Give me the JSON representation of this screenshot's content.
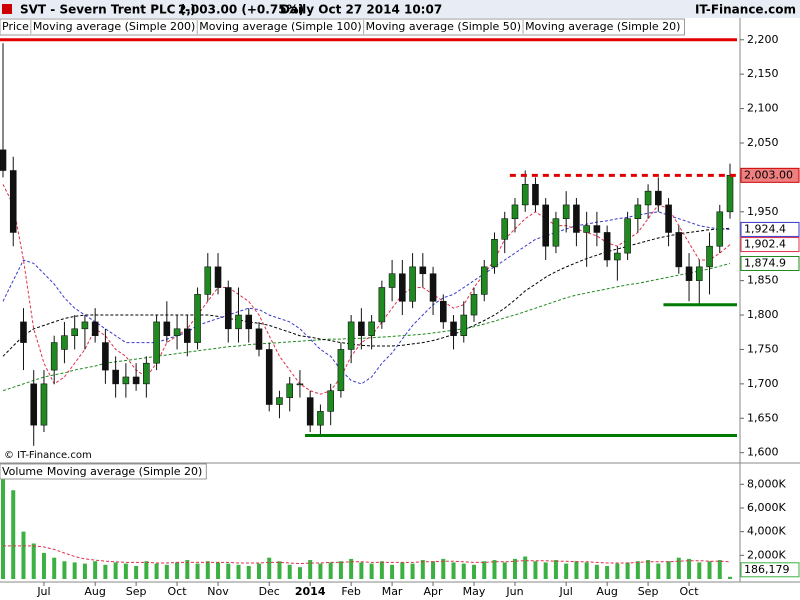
{
  "header": {
    "symbol": "SVT - Severn Trent PLC (-)",
    "quote": "2,003.00 (+0.75%)",
    "period": "Daily  Oct 27 2014 10:07",
    "site": "IT-Finance.com"
  },
  "chart_data": [
    {
      "type": "candlestick",
      "watermark": "© IT-Finance.com",
      "categories": [
        null,
        null,
        null,
        null,
        "Jul",
        null,
        null,
        null,
        null,
        "Aug",
        null,
        null,
        null,
        "Sep",
        null,
        null,
        null,
        "Oct",
        null,
        null,
        null,
        "Nov",
        null,
        null,
        null,
        null,
        "Dec",
        null,
        null,
        null,
        "2014",
        null,
        null,
        null,
        "Feb",
        null,
        null,
        null,
        "Mar",
        null,
        null,
        null,
        "Apr",
        null,
        null,
        null,
        "May",
        null,
        null,
        null,
        "Jun",
        null,
        null,
        null,
        null,
        "Jul",
        null,
        null,
        null,
        "Aug",
        null,
        null,
        null,
        "Sep",
        null,
        null,
        null,
        "Oct",
        null,
        null,
        null,
        null
      ],
      "price": {
        "name": "Price",
        "up_color": "#1f8a1f",
        "down_color": "#111111",
        "last_value_label": "2,003.00",
        "label_color": "#f08080",
        "open": [
          2040,
          2010,
          1790,
          1700,
          1640,
          1720,
          1750,
          1770,
          1780,
          1790,
          1760,
          1720,
          1700,
          1710,
          1700,
          1730,
          1790,
          1770,
          1780,
          1760,
          1830,
          1870,
          1840,
          1780,
          1800,
          1780,
          1750,
          1670,
          1680,
          1700,
          1680,
          1640,
          1660,
          1690,
          1750,
          1790,
          1770,
          1790,
          1840,
          1860,
          1820,
          1870,
          1860,
          1820,
          1790,
          1770,
          1800,
          1830,
          1870,
          1910,
          1940,
          1960,
          1990,
          1960,
          1900,
          1940,
          1960,
          1920,
          1930,
          1920,
          1880,
          1890,
          1940,
          1960,
          1980,
          1960,
          1920,
          1870,
          1850,
          1870,
          1900,
          1950
        ],
        "high": [
          2195,
          2030,
          1810,
          1720,
          1720,
          1770,
          1790,
          1800,
          1800,
          1810,
          1780,
          1740,
          1730,
          1730,
          1740,
          1800,
          1820,
          1800,
          1800,
          1840,
          1890,
          1890,
          1850,
          1840,
          1810,
          1790,
          1760,
          1690,
          1710,
          1720,
          1690,
          1670,
          1700,
          1760,
          1800,
          1810,
          1800,
          1850,
          1880,
          1880,
          1890,
          1890,
          1870,
          1830,
          1800,
          1820,
          1840,
          1880,
          1920,
          1950,
          1970,
          2010,
          2000,
          1970,
          1950,
          1980,
          1970,
          1950,
          1950,
          1930,
          1900,
          1950,
          1970,
          1990,
          2000,
          1970,
          1930,
          1890,
          1880,
          1920,
          1960,
          2020
        ],
        "low": [
          2000,
          1900,
          1720,
          1610,
          1630,
          1700,
          1730,
          1750,
          1750,
          1760,
          1700,
          1680,
          1680,
          1690,
          1680,
          1720,
          1760,
          1750,
          1740,
          1750,
          1820,
          1830,
          1760,
          1760,
          1760,
          1740,
          1660,
          1650,
          1660,
          1680,
          1630,
          1625,
          1640,
          1680,
          1730,
          1750,
          1750,
          1780,
          1820,
          1800,
          1810,
          1840,
          1800,
          1780,
          1750,
          1760,
          1790,
          1820,
          1860,
          1890,
          1920,
          1950,
          1950,
          1880,
          1890,
          1920,
          1900,
          1870,
          1900,
          1870,
          1850,
          1880,
          1920,
          1940,
          1950,
          1900,
          1860,
          1820,
          1815,
          1830,
          1890,
          1940
        ],
        "close": [
          2010,
          1920,
          1760,
          1640,
          1700,
          1760,
          1770,
          1780,
          1790,
          1770,
          1720,
          1700,
          1710,
          1700,
          1730,
          1790,
          1770,
          1780,
          1760,
          1830,
          1870,
          1840,
          1780,
          1800,
          1780,
          1750,
          1670,
          1680,
          1700,
          1700,
          1640,
          1660,
          1690,
          1750,
          1790,
          1770,
          1790,
          1840,
          1860,
          1820,
          1870,
          1860,
          1820,
          1790,
          1770,
          1800,
          1830,
          1870,
          1910,
          1940,
          1960,
          1990,
          1960,
          1900,
          1940,
          1960,
          1920,
          1930,
          1920,
          1880,
          1890,
          1940,
          1960,
          1980,
          1960,
          1920,
          1870,
          1850,
          1870,
          1900,
          1950,
          2003
        ]
      },
      "series": [
        {
          "name": "Moving average (Simple 200)",
          "color": "#1f8a1f",
          "style": "dashed",
          "values": [
            1690,
            1695,
            1700,
            1705,
            1710,
            1713,
            1716,
            1720,
            1723,
            1726,
            1730,
            1732,
            1734,
            1736,
            1738,
            1740,
            1742,
            1744,
            1746,
            1748,
            1750,
            1752,
            1754,
            1755,
            1757,
            1758,
            1759,
            1760,
            1761,
            1762,
            1763,
            1764,
            1765,
            1765,
            1766,
            1766,
            1767,
            1768,
            1769,
            1770,
            1771,
            1772,
            1774,
            1776,
            1778,
            1780,
            1783,
            1787,
            1791,
            1796,
            1800,
            1805,
            1810,
            1815,
            1820,
            1825,
            1829,
            1832,
            1835,
            1838,
            1841,
            1844,
            1846,
            1849,
            1852,
            1855,
            1858,
            1861,
            1864,
            1867,
            1871,
            1874.9
          ],
          "last_value_label": "1,874.9"
        },
        {
          "name": "Moving average (Simple 100)",
          "color": "#000000",
          "style": "dashed",
          "values": [
            1740,
            1755,
            1770,
            1780,
            1785,
            1790,
            1795,
            1798,
            1800,
            1800,
            1800,
            1800,
            1800,
            1800,
            1800,
            1800,
            1800,
            1800,
            1800,
            1800,
            1800,
            1798,
            1795,
            1793,
            1790,
            1788,
            1785,
            1780,
            1775,
            1770,
            1768,
            1765,
            1763,
            1760,
            1758,
            1756,
            1755,
            1755,
            1755,
            1756,
            1758,
            1760,
            1763,
            1767,
            1772,
            1778,
            1785,
            1792,
            1800,
            1810,
            1822,
            1835,
            1845,
            1855,
            1863,
            1870,
            1876,
            1882,
            1887,
            1892,
            1896,
            1900,
            1904,
            1908,
            1912,
            1915,
            1918,
            1920,
            1922,
            1924,
            1925,
            1926
          ]
        },
        {
          "name": "Moving average (Simple 50)",
          "color": "#3a3acc",
          "style": "dashed",
          "values": [
            1820,
            1850,
            1880,
            1875,
            1860,
            1845,
            1825,
            1810,
            1800,
            1790,
            1780,
            1770,
            1760,
            1760,
            1760,
            1760,
            1765,
            1770,
            1775,
            1785,
            1790,
            1795,
            1800,
            1805,
            1810,
            1808,
            1800,
            1795,
            1790,
            1780,
            1765,
            1750,
            1740,
            1720,
            1705,
            1700,
            1710,
            1730,
            1745,
            1765,
            1785,
            1800,
            1815,
            1825,
            1830,
            1840,
            1850,
            1860,
            1870,
            1880,
            1890,
            1900,
            1910,
            1915,
            1920,
            1925,
            1930,
            1932,
            1935,
            1937,
            1940,
            1942,
            1945,
            1948,
            1950,
            1945,
            1940,
            1935,
            1930,
            1927,
            1925,
            1924.4
          ],
          "last_value_label": "1,924.4"
        },
        {
          "name": "Moving average (Simple 20)",
          "color": "#e0304a",
          "style": "dashed",
          "values": [
            1990,
            1960,
            1880,
            1780,
            1730,
            1700,
            1710,
            1730,
            1750,
            1780,
            1770,
            1750,
            1740,
            1720,
            1710,
            1730,
            1760,
            1770,
            1780,
            1800,
            1820,
            1840,
            1840,
            1830,
            1820,
            1800,
            1770,
            1740,
            1720,
            1700,
            1690,
            1685,
            1690,
            1710,
            1740,
            1760,
            1770,
            1790,
            1810,
            1830,
            1840,
            1840,
            1830,
            1820,
            1810,
            1815,
            1840,
            1860,
            1880,
            1910,
            1925,
            1940,
            1950,
            1940,
            1930,
            1930,
            1925,
            1920,
            1915,
            1905,
            1900,
            1910,
            1920,
            1940,
            1960,
            1955,
            1930,
            1905,
            1880,
            1880,
            1890,
            1902.4
          ],
          "last_value_label": "1,902.4"
        }
      ],
      "lines": [
        {
          "value": 2200,
          "color": "#e00000",
          "style": "solid",
          "from": 0,
          "to": 71
        },
        {
          "value": 2003,
          "color": "#e00000",
          "style": "dashed",
          "from": 50,
          "to": 71
        },
        {
          "value": 1625,
          "color": "#007a00",
          "style": "solid",
          "from": 30,
          "to": 71
        },
        {
          "value": 1815,
          "color": "#007a00",
          "style": "solid",
          "from": 65,
          "to": 71
        }
      ],
      "ylim": [
        1585,
        2204
      ],
      "yticks": [
        {
          "value": 1600,
          "label": "1,600"
        },
        {
          "value": 1650,
          "label": "1,650"
        },
        {
          "value": 1700,
          "label": "1,700"
        },
        {
          "value": 1750,
          "label": "1,750"
        },
        {
          "value": 1800,
          "label": "1,800"
        },
        {
          "value": 1850,
          "label": "1,850"
        },
        {
          "value": 1900,
          "label": "1,900"
        },
        {
          "value": 1950,
          "label": "1,950"
        },
        {
          "value": 2000,
          "label": "2,000"
        },
        {
          "value": 2050,
          "label": "2,050"
        },
        {
          "value": 2100,
          "label": "2,100"
        },
        {
          "value": 2150,
          "label": "2,150"
        },
        {
          "value": 2200,
          "label": "2,200"
        }
      ]
    },
    {
      "type": "bar",
      "series": [
        {
          "name": "Volume",
          "color": "#3cb043",
          "values": [
            9000000,
            7500000,
            4000000,
            3000000,
            2200000,
            1800000,
            1500000,
            1400000,
            1300000,
            1500000,
            1200000,
            1400000,
            1300000,
            1100000,
            1500000,
            1300000,
            1200000,
            1400000,
            1600000,
            1300000,
            1500000,
            1400000,
            1300000,
            1200000,
            1100000,
            1300000,
            1800000,
            1500000,
            1200000,
            1000000,
            1600000,
            1300000,
            1400000,
            1500000,
            1700000,
            1400000,
            1300000,
            1500000,
            1200000,
            1400000,
            1300000,
            1600000,
            1500000,
            1700000,
            1400000,
            1300000,
            1200000,
            1500000,
            1600000,
            1400000,
            1700000,
            1900000,
            1500000,
            1400000,
            1600000,
            1300000,
            1500000,
            1400000,
            1200000,
            1100000,
            1300000,
            1400000,
            1500000,
            1600000,
            1300000,
            1500000,
            1800000,
            1700000,
            1400000,
            1500000,
            1600000,
            186179
          ],
          "last_value_label": "186,179"
        },
        {
          "name": "Moving average (Simple 20)",
          "color": "#e0304a",
          "style": "dashed",
          "values": [
            2800000,
            2800000,
            2800000,
            2800000,
            2700000,
            2500000,
            2200000,
            1900000,
            1700000,
            1600000,
            1500000,
            1450000,
            1400000,
            1400000,
            1400000,
            1350000,
            1350000,
            1400000,
            1400000,
            1400000,
            1400000,
            1400000,
            1400000,
            1350000,
            1350000,
            1350000,
            1400000,
            1400000,
            1350000,
            1300000,
            1350000,
            1350000,
            1400000,
            1400000,
            1450000,
            1450000,
            1400000,
            1400000,
            1400000,
            1400000,
            1400000,
            1450000,
            1450000,
            1500000,
            1500000,
            1450000,
            1400000,
            1400000,
            1450000,
            1450000,
            1500000,
            1550000,
            1550000,
            1550000,
            1500000,
            1500000,
            1450000,
            1450000,
            1400000,
            1350000,
            1350000,
            1350000,
            1400000,
            1450000,
            1450000,
            1450000,
            1500000,
            1550000,
            1550000,
            1500000,
            1500000,
            1450000
          ]
        }
      ],
      "ylim": [
        0,
        9800000
      ],
      "yticks": [
        {
          "value": 2000000,
          "label": "2,000K"
        },
        {
          "value": 4000000,
          "label": "4,000K"
        },
        {
          "value": 6000000,
          "label": "6,000K"
        },
        {
          "value": 8000000,
          "label": "8,000K"
        }
      ]
    }
  ]
}
